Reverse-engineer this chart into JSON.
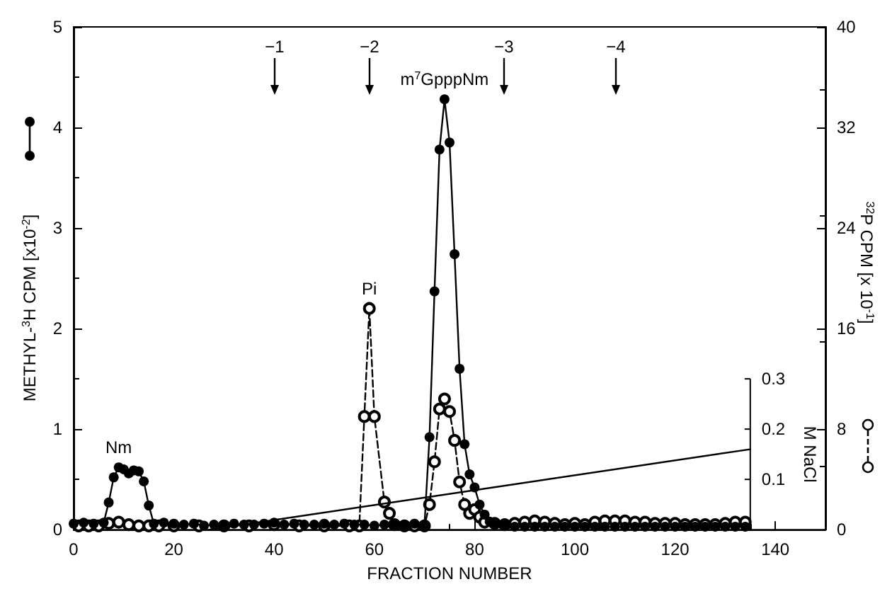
{
  "chart_data": {
    "type": "line",
    "xlabel": "FRACTION NUMBER",
    "ylabel": "METHYL-$^{3}$H CPM [x10$^{-2}$]",
    "y2label": "$^{32}$P CPM [x 10$^{-1}$]",
    "y3label": "M NaCl",
    "xlim": [
      0,
      150
    ],
    "xticks": [
      0,
      20,
      40,
      60,
      80,
      100,
      120,
      140
    ],
    "ylim": [
      0,
      5
    ],
    "yticks": [
      0,
      1,
      2,
      3,
      4,
      5
    ],
    "y2lim": [
      0,
      40
    ],
    "y2ticks": [
      0,
      8,
      16,
      24,
      32,
      40
    ],
    "y3lim": [
      0,
      1
    ],
    "y3ticks": [
      0.1,
      0.2,
      0.3
    ],
    "grid": false,
    "series": [
      {
        "color": "#000000",
        "marker": "circle",
        "line_style": "solid",
        "x": [
          0,
          2,
          4,
          6,
          7,
          8,
          9,
          10,
          11,
          12,
          13,
          14,
          15,
          16,
          18,
          20,
          22,
          24,
          26,
          28,
          30,
          32,
          34,
          36,
          38,
          40,
          42,
          44,
          46,
          48,
          50,
          52,
          54,
          56,
          58,
          60,
          62,
          64,
          66,
          68,
          70,
          71,
          72,
          73,
          74,
          75,
          76,
          77,
          78,
          79,
          80,
          81,
          82,
          83,
          84,
          86,
          88,
          90,
          92,
          94,
          96,
          98,
          100,
          102,
          104,
          106,
          108,
          110,
          112,
          114,
          116,
          118,
          120,
          122,
          124,
          126,
          128,
          130,
          132,
          134
        ],
        "values": [
          0.06,
          0.07,
          0.06,
          0.07,
          0.27,
          0.52,
          0.62,
          0.6,
          0.56,
          0.59,
          0.58,
          0.48,
          0.24,
          0.06,
          0.07,
          0.06,
          0.05,
          0.06,
          0.04,
          0.05,
          0.05,
          0.06,
          0.05,
          0.05,
          0.06,
          0.07,
          0.05,
          0.06,
          0.05,
          0.05,
          0.06,
          0.05,
          0.06,
          0.05,
          0.05,
          0.04,
          0.05,
          0.04,
          0.05,
          0.06,
          0.05,
          0.92,
          2.37,
          3.78,
          4.28,
          3.85,
          2.74,
          1.6,
          0.85,
          0.55,
          0.42,
          0.25,
          0.15,
          0.08,
          0.05,
          0.04,
          0.03,
          0.03,
          0.03,
          0.03,
          0.03,
          0.03,
          0.03,
          0.03,
          0.03,
          0.03,
          0.03,
          0.03,
          0.03,
          0.03,
          0.03,
          0.03,
          0.03,
          0.03,
          0.03,
          0.03,
          0.03,
          0.03,
          0.03,
          0.03
        ]
      },
      {
        "color": "#000000",
        "marker": "circle",
        "line_style": "dashed",
        "axis": "y2",
        "x": [
          1,
          3,
          5,
          7,
          9,
          11,
          13,
          15,
          17,
          20,
          25,
          30,
          35,
          40,
          45,
          50,
          55,
          57,
          58,
          59,
          60,
          62,
          63,
          64,
          66,
          68,
          70,
          71,
          72,
          73,
          74,
          75,
          76,
          77,
          78,
          79,
          80,
          81,
          82,
          84,
          86,
          88,
          90,
          92,
          94,
          96,
          98,
          100,
          102,
          104,
          106,
          108,
          110,
          112,
          114,
          116,
          118,
          120,
          122,
          124,
          126,
          128,
          130,
          132,
          134
        ],
        "values": [
          0.3,
          0.3,
          0.3,
          0.5,
          0.6,
          0.4,
          0.3,
          0.3,
          0.3,
          0.3,
          0.3,
          0.3,
          0.3,
          0.4,
          0.3,
          0.3,
          0.3,
          0.3,
          9.0,
          17.6,
          9.0,
          2.2,
          1.3,
          0.4,
          0.3,
          0.3,
          0.3,
          2.0,
          5.4,
          9.6,
          10.4,
          9.4,
          7.1,
          3.8,
          2.0,
          1.3,
          1.6,
          1.0,
          0.6,
          0.5,
          0.4,
          0.5,
          0.6,
          0.7,
          0.6,
          0.5,
          0.4,
          0.5,
          0.4,
          0.6,
          0.7,
          0.7,
          0.7,
          0.6,
          0.6,
          0.5,
          0.5,
          0.5,
          0.4,
          0.4,
          0.4,
          0.4,
          0.5,
          0.6,
          0.6
        ]
      },
      {
        "color": "#000000",
        "marker": "none",
        "line_style": "solid",
        "axis": "y3",
        "x": [
          27,
          135
        ],
        "values": [
          0,
          0.16
        ]
      }
    ],
    "annotations": [
      {
        "text": "Nm",
        "x": 9,
        "y": 0.62
      },
      {
        "text": "Pi",
        "x": 59,
        "y": 2.2
      },
      {
        "text": "m$^{7}$GpppNm",
        "x": 74,
        "y": 4.28
      },
      "−1",
      "−2",
      "−3",
      "−4"
    ]
  }
}
